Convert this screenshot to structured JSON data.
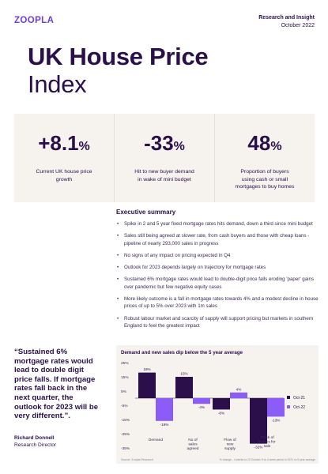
{
  "header": {
    "logo": "ZOOPLA",
    "section": "Research and Insight",
    "date": "October 2022"
  },
  "title": {
    "line1": "UK House Price",
    "line2": "Index"
  },
  "stats": [
    {
      "value": "+8.1",
      "unit": "%",
      "label": "Current UK house price growth"
    },
    {
      "value": "-33",
      "unit": "%",
      "label": "Hit to new buyer demand in wake of mini budget"
    },
    {
      "value": "48",
      "unit": "%",
      "label": "Proportion of buyers using cash or small mortgages to buy homes"
    }
  ],
  "executive_summary": {
    "title": "Executive summary",
    "bullets": [
      "Spike in 2 and 5 year fixed mortgage rates hits demand, down a third since mini budget",
      "Sales still being agreed at slower rate, from cash buyers and those with cheap loans - pipeline of nearly 293,000 sales in progress",
      "No signs of any impact on pricing expected in Q4",
      "Outlook for 2023 depends largely on trajectory for mortgage rates",
      "Sustained 6% mortgage rates would lead to double-digit price falls eroding 'paper' gains over pandemic but few negative equity cases",
      "More likely outcome is a fall in mortgage rates towards 4% and a modest decline in house prices of up to 5% over 2023 with 1m sales",
      "Robust labour market and scarcity of supply will support pricing but markets in southern England to feel the greatest impact"
    ]
  },
  "quote": {
    "text": "“Sustained 6% mortgage rates would lead to double digit price falls. If mortgage rates fall back in the next quarter, the outlook for 2023 will be very different.”.",
    "name": "Richard Donnell",
    "role": "Research Director"
  },
  "chart_data": {
    "type": "bar",
    "title": "Demand and new sales dip below the 5 year average",
    "categories": [
      "Demand",
      "No of sales agreed",
      "Flow of new supply",
      "Stock of homes for sale"
    ],
    "series": [
      {
        "name": "Oct-21",
        "color": "#2a0f4a",
        "values": [
          18,
          15,
          -8,
          -32
        ],
        "labels": [
          "18%",
          "15%",
          "-8%",
          "-32%"
        ]
      },
      {
        "name": "Oct-22",
        "color": "#8b5cf6",
        "values": [
          -16,
          -4,
          4,
          -13
        ],
        "labels": [
          "-16%",
          "-4%",
          "4%",
          "-13%"
        ]
      }
    ],
    "yticks": [
      "25%",
      "15%",
      "5%",
      "-5%",
      "-15%",
      "-25%",
      "-35%"
    ],
    "ylim": [
      -35,
      25
    ],
    "legend": "right",
    "source": "Source: Zoopla Research",
    "footnote": "% change - 4 weeks to 23 October 9 vs 4 week period in 2021 vs 5 year average"
  }
}
